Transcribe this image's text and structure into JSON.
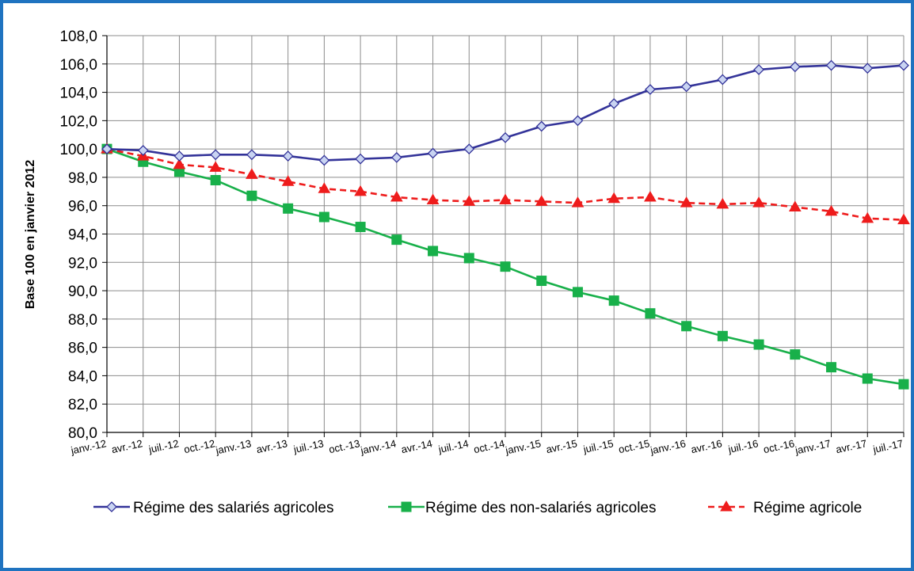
{
  "chart_data": {
    "type": "line",
    "title": "",
    "xlabel": "",
    "ylabel": "Base 100 en janvier 2012",
    "ylim": [
      80,
      108
    ],
    "yticks": [
      "80,0",
      "82,0",
      "84,0",
      "86,0",
      "88,0",
      "90,0",
      "92,0",
      "94,0",
      "96,0",
      "98,0",
      "100,0",
      "102,0",
      "104,0",
      "106,0",
      "108,0"
    ],
    "categories": [
      "janv.-12",
      "avr.-12",
      "juil.-12",
      "oct.-12",
      "janv.-13",
      "avr.-13",
      "juil.-13",
      "oct.-13",
      "janv.-14",
      "avr.-14",
      "juil.-14",
      "oct.-14",
      "janv.-15",
      "avr.-15",
      "juil.-15",
      "oct.-15",
      "janv.-16",
      "avr.-16",
      "juil.-16",
      "oct.-16",
      "janv.-17",
      "avr.-17",
      "juil.-17"
    ],
    "grid": true,
    "legend_position": "bottom",
    "series": [
      {
        "name": "Régime des salariés agricoles",
        "color": "#333399",
        "marker": "diamond",
        "dashed": false,
        "values": [
          100.0,
          99.9,
          99.5,
          99.6,
          99.6,
          99.5,
          99.2,
          99.3,
          99.4,
          99.7,
          100.0,
          100.8,
          101.6,
          102.0,
          103.2,
          104.2,
          104.4,
          104.9,
          105.6,
          105.8,
          105.9,
          105.7,
          105.9
        ]
      },
      {
        "name": "Régime des non-salariés agricoles",
        "color": "#18b04a",
        "marker": "square",
        "dashed": false,
        "values": [
          100.0,
          99.1,
          98.4,
          97.8,
          96.7,
          95.8,
          95.2,
          94.5,
          93.6,
          92.8,
          92.3,
          91.7,
          90.7,
          89.9,
          89.3,
          88.4,
          87.5,
          86.8,
          86.2,
          85.5,
          84.6,
          83.8,
          83.4
        ]
      },
      {
        "name": "Régime agricole",
        "color": "#ee1c1c",
        "marker": "triangle",
        "dashed": true,
        "values": [
          100.0,
          99.5,
          98.9,
          98.7,
          98.2,
          97.7,
          97.2,
          97.0,
          96.6,
          96.4,
          96.3,
          96.4,
          96.3,
          96.2,
          96.5,
          96.6,
          96.2,
          96.1,
          96.2,
          95.9,
          95.6,
          95.1,
          95.0
        ]
      }
    ]
  }
}
